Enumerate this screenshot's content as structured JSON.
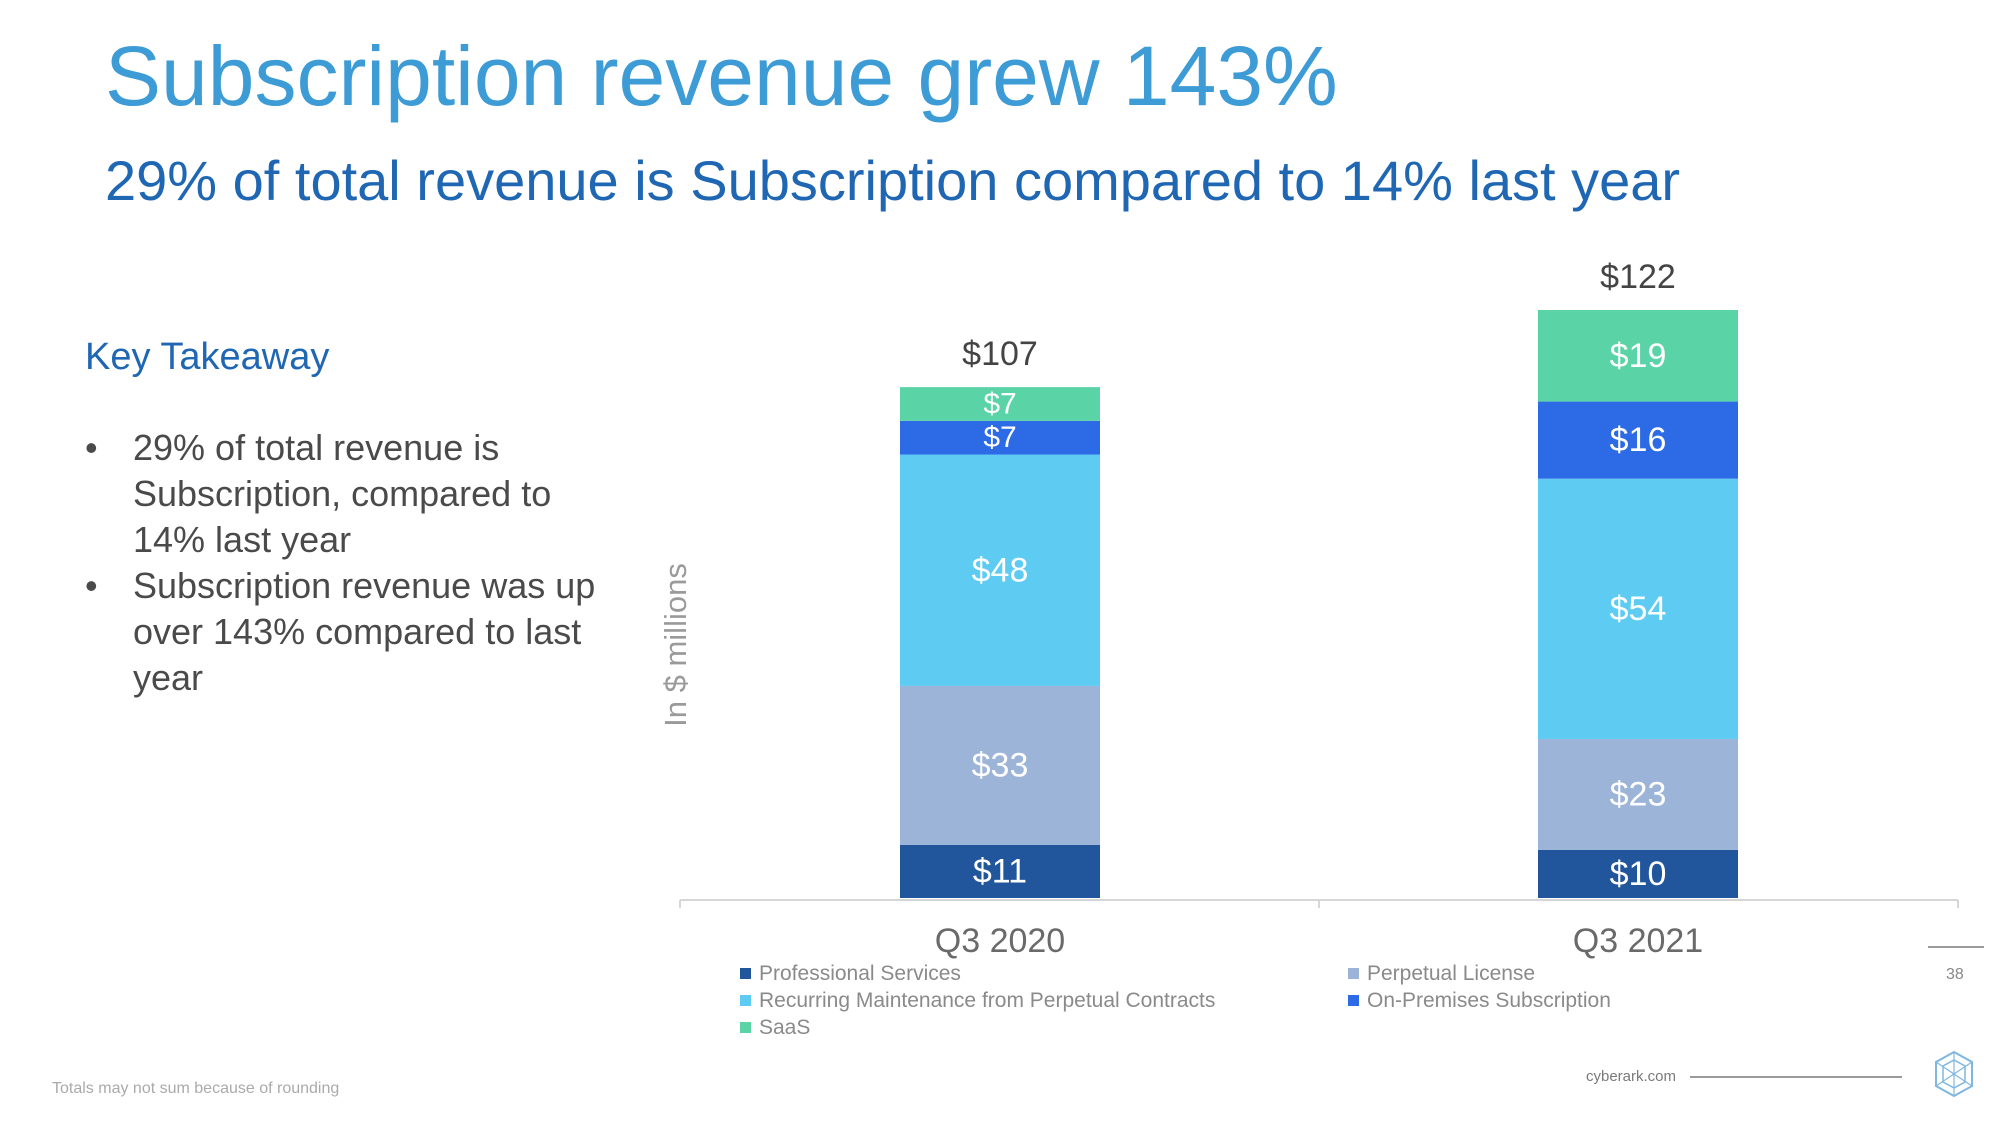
{
  "header": {
    "title": "Subscription revenue grew 143%",
    "subtitle": "29% of total revenue is Subscription compared to 14% last year"
  },
  "takeaway": {
    "title": "Key Takeaway",
    "bullets": [
      "29% of total revenue is Subscription, compared to 14% last year",
      "Subscription revenue was up over 143% compared to last year"
    ]
  },
  "chart_data": {
    "type": "bar",
    "stacked": true,
    "ylabel": "In $ millions",
    "categories": [
      "Q3 2020",
      "Q3 2021"
    ],
    "totals": [
      107,
      122
    ],
    "total_labels": [
      "$107",
      "$122"
    ],
    "ylim": [
      0,
      122
    ],
    "series": [
      {
        "name": "Professional Services",
        "values": [
          11,
          10
        ],
        "labels": [
          "$11",
          "$10"
        ],
        "color": "#21569c"
      },
      {
        "name": "Perpetual License",
        "values": [
          33,
          23
        ],
        "labels": [
          "$33",
          "$23"
        ],
        "color": "#9bb4d8"
      },
      {
        "name": "Recurring Maintenance from Perpetual Contracts",
        "values": [
          48,
          54
        ],
        "labels": [
          "$48",
          "$54"
        ],
        "color": "#5ecbf3"
      },
      {
        "name": "On-Premises Subscription",
        "values": [
          7,
          16
        ],
        "labels": [
          "$7",
          "$16"
        ],
        "color": "#2c6ae6"
      },
      {
        "name": "SaaS",
        "values": [
          7,
          19
        ],
        "labels": [
          "$7",
          "$19"
        ],
        "color": "#5ad3a7"
      }
    ]
  },
  "legend": {
    "left": [
      {
        "label": "Professional Services",
        "color": "#21569c"
      },
      {
        "label": "Recurring Maintenance from Perpetual Contracts",
        "color": "#5ecbf3"
      },
      {
        "label": "SaaS",
        "color": "#5ad3a7"
      }
    ],
    "right": [
      {
        "label": "Perpetual License",
        "color": "#9bb4d8"
      },
      {
        "label": "On-Premises Subscription",
        "color": "#2c6ae6"
      }
    ]
  },
  "footer": {
    "note": "Totals may not sum because of rounding",
    "site": "cyberark.com",
    "page": "38"
  }
}
